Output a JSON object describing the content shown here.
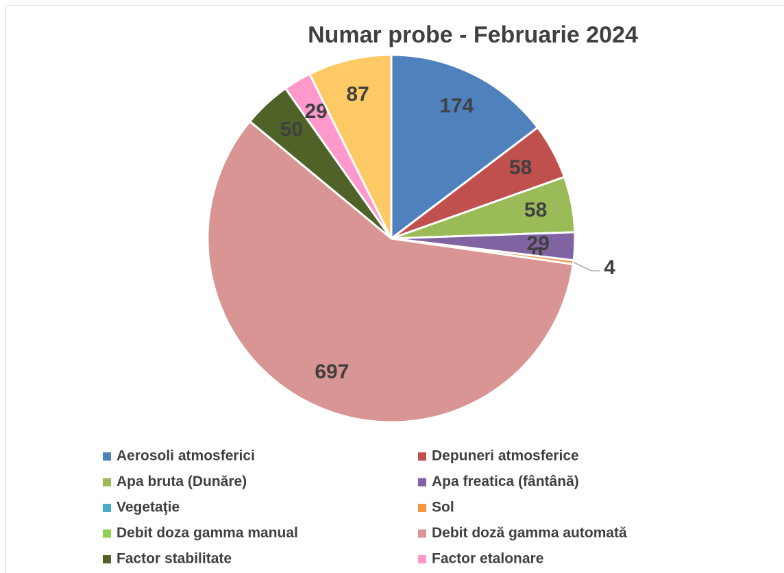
{
  "chart_data": {
    "type": "pie",
    "title": "Numar probe - Februarie 2024",
    "categories": [
      "Aerosoli atmosferici",
      "Depuneri atmosferice",
      "Apa bruta (Dunăre)",
      "Apa freatica (fântână)",
      "Vegetaţie",
      "Sol",
      "Debit  doza gamma manual",
      "Debit doză gamma automată",
      "Factor stabilitate",
      "Factor etalonare",
      null
    ],
    "values": [
      174,
      58,
      58,
      29,
      0,
      4,
      null,
      697,
      50,
      29,
      87
    ],
    "colors": [
      "#4f81bd",
      "#c0504d",
      "#9bbb59",
      "#8064a2",
      "#4bacc6",
      "#f79646",
      "#92d050",
      "#d99594",
      "#4f6228",
      "#ff99cc",
      "#ffc966"
    ]
  }
}
